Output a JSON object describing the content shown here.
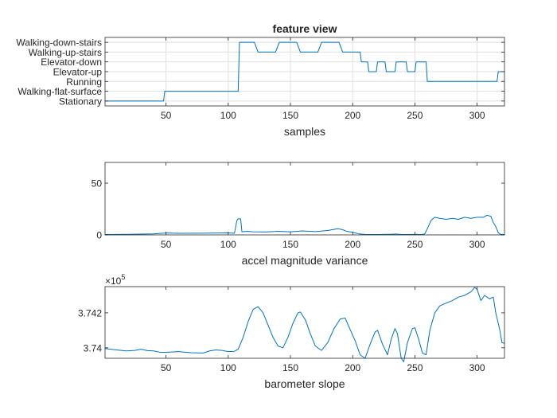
{
  "chart_data": [
    {
      "type": "line",
      "title": "feature view",
      "xlabel": "samples",
      "ylabel": "",
      "xlim": [
        1,
        322
      ],
      "ylim": [
        0.5,
        7.5
      ],
      "xticks": [
        50,
        100,
        150,
        200,
        250,
        300
      ],
      "y_categories": [
        "Stationary",
        "Walking-flat-surface",
        "Running",
        "Elevator-up",
        "Elevator-down",
        "Walking-up-stairs",
        "Walking-down-stairs"
      ],
      "grid": true,
      "series": [
        {
          "color": "#0072BD",
          "points": [
            [
              1,
              1
            ],
            [
              48,
              1
            ],
            [
              49,
              2
            ],
            [
              108,
              2
            ],
            [
              109,
              7
            ],
            [
              121,
              7
            ],
            [
              124,
              6
            ],
            [
              138,
              6
            ],
            [
              141,
              7
            ],
            [
              155,
              7
            ],
            [
              158,
              6
            ],
            [
              172,
              6
            ],
            [
              175,
              7
            ],
            [
              189,
              7
            ],
            [
              192,
              6
            ],
            [
              206,
              6
            ],
            [
              207,
              5
            ],
            [
              212,
              5
            ],
            [
              213,
              4
            ],
            [
              219,
              4
            ],
            [
              220,
              5
            ],
            [
              226,
              5
            ],
            [
              227,
              4
            ],
            [
              234,
              4
            ],
            [
              235,
              5
            ],
            [
              243,
              5
            ],
            [
              244,
              4
            ],
            [
              250,
              4
            ],
            [
              251,
              5
            ],
            [
              259,
              5
            ],
            [
              260,
              3
            ],
            [
              316,
              3
            ],
            [
              317,
              4
            ],
            [
              322,
              4
            ]
          ]
        }
      ]
    },
    {
      "type": "line",
      "title": "",
      "xlabel": "accel magnitude variance",
      "ylabel": "",
      "xlim": [
        1,
        322
      ],
      "ylim": [
        0,
        70
      ],
      "xticks": [
        50,
        100,
        150,
        200,
        250,
        300
      ],
      "yticks": [
        0,
        50
      ],
      "grid": false,
      "series": [
        {
          "color": "#0072BD",
          "points": [
            [
              1,
              0.4
            ],
            [
              20,
              0.6
            ],
            [
              40,
              1.0
            ],
            [
              50,
              1.8
            ],
            [
              60,
              1.5
            ],
            [
              80,
              1.6
            ],
            [
              100,
              1.9
            ],
            [
              105,
              1.5
            ],
            [
              107,
              14
            ],
            [
              108,
              15.5
            ],
            [
              110,
              15.5
            ],
            [
              111,
              3
            ],
            [
              115,
              3.5
            ],
            [
              120,
              3
            ],
            [
              130,
              2.8
            ],
            [
              140,
              3.5
            ],
            [
              150,
              3
            ],
            [
              160,
              3.8
            ],
            [
              170,
              3.2
            ],
            [
              180,
              4.2
            ],
            [
              188,
              6
            ],
            [
              192,
              5
            ],
            [
              195,
              3.5
            ],
            [
              200,
              2.5
            ],
            [
              205,
              1
            ],
            [
              210,
              0.5
            ],
            [
              220,
              0.4
            ],
            [
              230,
              0.6
            ],
            [
              235,
              0.8
            ],
            [
              240,
              0.4
            ],
            [
              250,
              0.5
            ],
            [
              255,
              0.3
            ],
            [
              258,
              1
            ],
            [
              260,
              6
            ],
            [
              263,
              14
            ],
            [
              266,
              17
            ],
            [
              270,
              16
            ],
            [
              275,
              15
            ],
            [
              280,
              16
            ],
            [
              285,
              15
            ],
            [
              290,
              17
            ],
            [
              295,
              16
            ],
            [
              300,
              17
            ],
            [
              305,
              17
            ],
            [
              308,
              19
            ],
            [
              311,
              18
            ],
            [
              313,
              12
            ],
            [
              315,
              8
            ],
            [
              317,
              2
            ],
            [
              319,
              0.5
            ],
            [
              322,
              0.3
            ]
          ]
        }
      ]
    },
    {
      "type": "line",
      "title": "",
      "xlabel": "barometer slope",
      "ylabel": "",
      "exponent_label": "×10",
      "exponent_power": "5",
      "xlim": [
        1,
        322
      ],
      "ylim": [
        3.7394,
        3.7435
      ],
      "xticks": [
        50,
        100,
        150,
        200,
        250,
        300
      ],
      "yticks": [
        3.74,
        3.742
      ],
      "yticklabels": [
        "3.74",
        "3.742"
      ],
      "grid": false,
      "series": [
        {
          "color": "#0072BD",
          "points": [
            [
              1,
              3.73996
            ],
            [
              10,
              3.73988
            ],
            [
              18,
              3.73982
            ],
            [
              25,
              3.73985
            ],
            [
              30,
              3.73992
            ],
            [
              35,
              3.73984
            ],
            [
              40,
              3.73982
            ],
            [
              45,
              3.73975
            ],
            [
              50,
              3.73974
            ],
            [
              60,
              3.73978
            ],
            [
              70,
              3.73972
            ],
            [
              80,
              3.7397
            ],
            [
              85,
              3.73982
            ],
            [
              90,
              3.73988
            ],
            [
              95,
              3.73985
            ],
            [
              100,
              3.73978
            ],
            [
              105,
              3.7398
            ],
            [
              108,
              3.73992
            ],
            [
              112,
              3.7406
            ],
            [
              116,
              3.7415
            ],
            [
              120,
              3.7422
            ],
            [
              124,
              3.74235
            ],
            [
              128,
              3.742
            ],
            [
              132,
              3.7413
            ],
            [
              136,
              3.7406
            ],
            [
              140,
              3.7401
            ],
            [
              144,
              3.74
            ],
            [
              148,
              3.7406
            ],
            [
              152,
              3.7414
            ],
            [
              156,
              3.742
            ],
            [
              158,
              3.74205
            ],
            [
              162,
              3.7416
            ],
            [
              166,
              3.7408
            ],
            [
              170,
              3.7401
            ],
            [
              175,
              3.73985
            ],
            [
              180,
              3.7403
            ],
            [
              185,
              3.7411
            ],
            [
              190,
              3.74165
            ],
            [
              194,
              3.7417
            ],
            [
              197,
              3.7412
            ],
            [
              202,
              3.7404
            ],
            [
              206,
              3.7396
            ],
            [
              210,
              3.7394
            ],
            [
              214,
              3.7402
            ],
            [
              218,
              3.7409
            ],
            [
              220,
              3.741
            ],
            [
              224,
              3.7402
            ],
            [
              228,
              3.7396
            ],
            [
              231,
              3.7405
            ],
            [
              234,
              3.7411
            ],
            [
              236,
              3.7408
            ],
            [
              239,
              3.7394
            ],
            [
              241,
              3.7392
            ],
            [
              244,
              3.7403
            ],
            [
              248,
              3.7411
            ],
            [
              250,
              3.74115
            ],
            [
              253,
              3.7405
            ],
            [
              256,
              3.7397
            ],
            [
              259,
              3.7396
            ],
            [
              262,
              3.741
            ],
            [
              266,
              3.742
            ],
            [
              270,
              3.7424
            ],
            [
              275,
              3.74255
            ],
            [
              280,
              3.7427
            ],
            [
              285,
              3.7429
            ],
            [
              290,
              3.743
            ],
            [
              295,
              3.7432
            ],
            [
              298,
              3.74345
            ],
            [
              300,
              3.74335
            ],
            [
              303,
              3.7427
            ],
            [
              306,
              3.743
            ],
            [
              310,
              3.7428
            ],
            [
              313,
              3.7429
            ],
            [
              315,
              3.742
            ],
            [
              318,
              3.7411
            ],
            [
              320,
              3.7403
            ],
            [
              322,
              3.74025
            ]
          ]
        }
      ]
    }
  ]
}
